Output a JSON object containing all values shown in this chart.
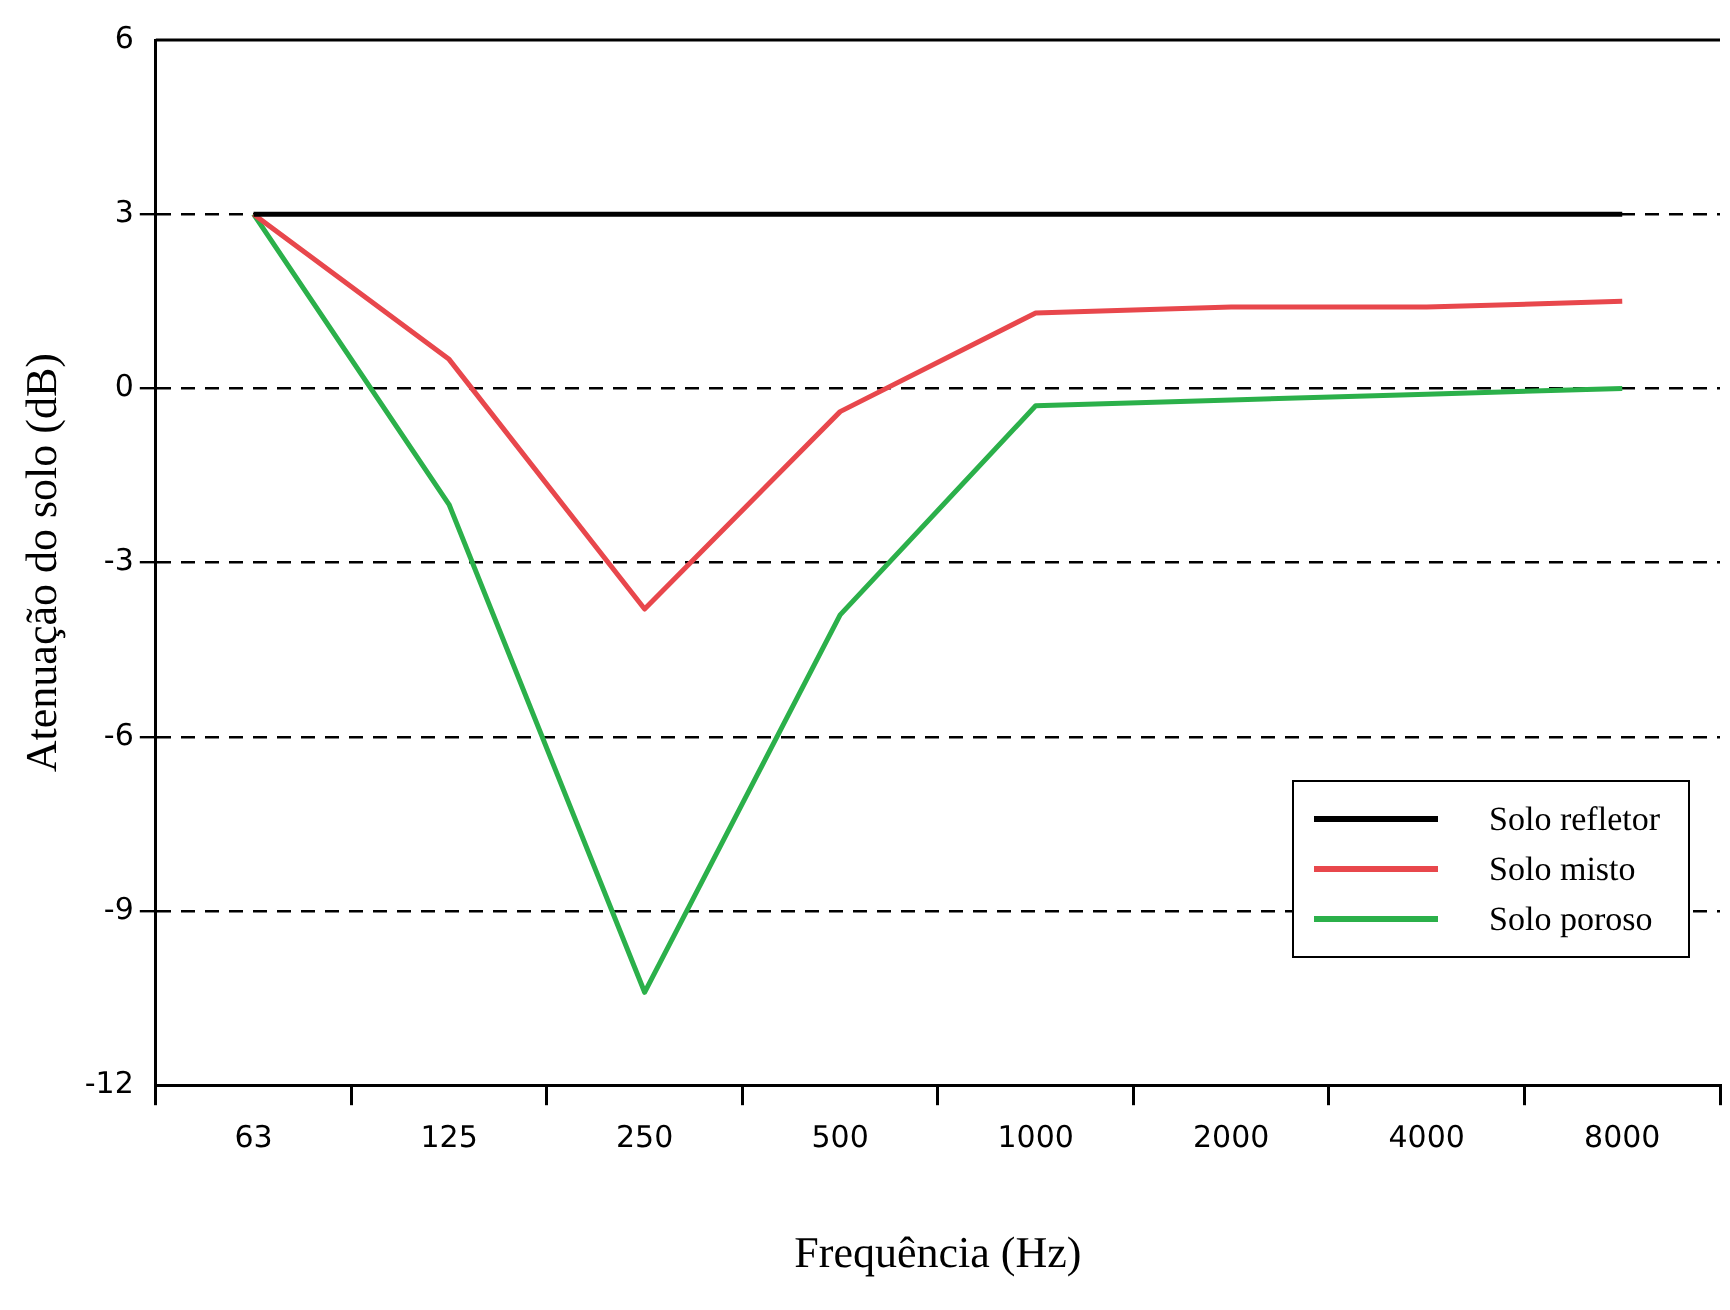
{
  "chart_data": {
    "type": "line",
    "xlabel": "Frequência (Hz)",
    "ylabel": "Atenuação do solo (dB)",
    "categories": [
      "63",
      "125",
      "250",
      "500",
      "1000",
      "2000",
      "4000",
      "8000"
    ],
    "series": [
      {
        "name": "Solo refletor",
        "color": "#000000",
        "values": [
          3,
          3,
          3,
          3,
          3,
          3,
          3,
          3
        ]
      },
      {
        "name": "Solo misto",
        "color": "#e8474c",
        "values": [
          3,
          0.5,
          -3.8,
          -0.4,
          1.3,
          1.4,
          1.4,
          1.5
        ]
      },
      {
        "name": "Solo poroso",
        "color": "#2bb04a",
        "values": [
          3,
          -2.0,
          -10.4,
          -3.9,
          -0.3,
          -0.2,
          -0.1,
          0
        ]
      }
    ],
    "ylim": [
      -12,
      6
    ],
    "yticks": [
      -12,
      -9,
      -6,
      -3,
      0,
      3,
      6
    ],
    "grid": "y",
    "line_style": "solid",
    "marker": "none",
    "legend": "bottom right"
  }
}
